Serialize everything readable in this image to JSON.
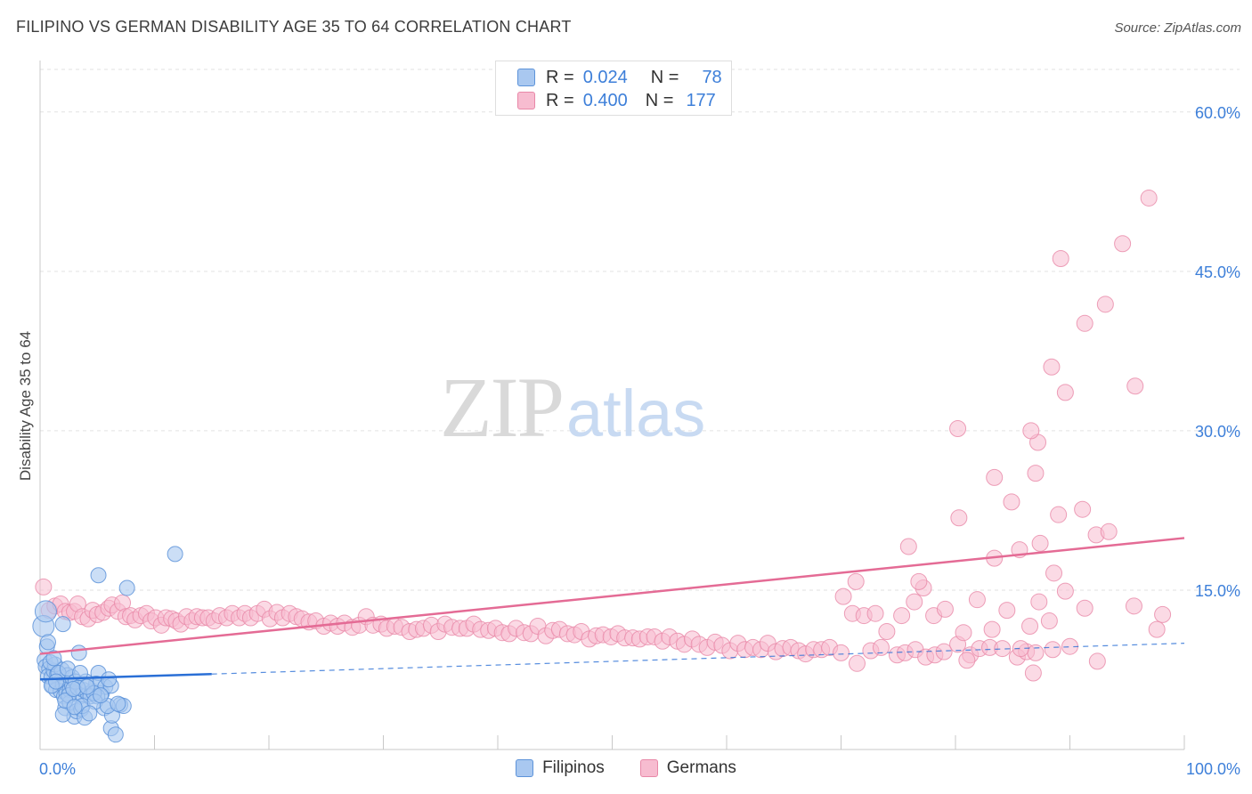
{
  "header": {
    "title": "FILIPINO VS GERMAN DISABILITY AGE 35 TO 64 CORRELATION CHART",
    "source": "Source: ZipAtlas.com"
  },
  "watermark": {
    "zip": "ZIP",
    "atlas": "atlas"
  },
  "legend_top": {
    "rows": [
      {
        "r_label": "R =",
        "r_value": "0.024",
        "n_label": "N =",
        "n_value": "78"
      },
      {
        "r_label": "R =",
        "r_value": "0.400",
        "n_label": "N =",
        "n_value": "177"
      }
    ]
  },
  "legend_bottom": {
    "items": [
      "Filipinos",
      "Germans"
    ]
  },
  "colors": {
    "filipino_fill": "#a9c8f0",
    "filipino_stroke": "#5d93d9",
    "filipino_line": "#2a6fd6",
    "german_fill": "#f7bcd0",
    "german_stroke": "#e888a8",
    "german_line": "#e46b95",
    "axis_label": "#3d7fd9",
    "grid": "#e2e2e2"
  },
  "chart_data": {
    "type": "scatter",
    "title": "FILIPINO VS GERMAN DISABILITY AGE 35 TO 64 CORRELATION CHART",
    "xlabel": "",
    "ylabel": "Disability Age 35 to 64",
    "xlim": [
      0,
      100
    ],
    "ylim": [
      0,
      64
    ],
    "x_tick_labels": [
      "0.0%",
      "100.0%"
    ],
    "y_ticks": [
      15,
      30,
      45,
      60
    ],
    "y_tick_labels": [
      "15.0%",
      "30.0%",
      "45.0%",
      "60.0%"
    ],
    "grid": true,
    "legend_position": "top-center",
    "series": [
      {
        "name": "Filipinos",
        "R": 0.024,
        "N": 78,
        "trend": {
          "x": [
            0,
            15
          ],
          "y": [
            6.6,
            7.1
          ],
          "dashed_extension": {
            "x": [
              15,
              100
            ],
            "y": [
              7.1,
              10.0
            ]
          }
        },
        "points": [
          [
            0.3,
            11.6
          ],
          [
            0.5,
            13.0
          ],
          [
            0.6,
            9.7
          ],
          [
            0.4,
            8.4
          ],
          [
            0.5,
            7.8
          ],
          [
            0.8,
            7.6
          ],
          [
            0.7,
            6.9
          ],
          [
            1.0,
            6.8
          ],
          [
            1.2,
            7.4
          ],
          [
            1.5,
            7.1
          ],
          [
            1.7,
            6.3
          ],
          [
            1.1,
            6.0
          ],
          [
            1.4,
            5.6
          ],
          [
            1.8,
            5.5
          ],
          [
            2.0,
            6.1
          ],
          [
            2.1,
            5.0
          ],
          [
            2.3,
            5.3
          ],
          [
            2.6,
            5.6
          ],
          [
            2.8,
            6.0
          ],
          [
            3.2,
            5.3
          ],
          [
            3.5,
            5.0
          ],
          [
            3.8,
            5.6
          ],
          [
            4.2,
            5.2
          ],
          [
            4.6,
            5.5
          ],
          [
            5.0,
            6.1
          ],
          [
            5.4,
            5.3
          ],
          [
            2.0,
            11.8
          ],
          [
            3.4,
            9.1
          ],
          [
            5.1,
            7.2
          ],
          [
            4.9,
            6.2
          ],
          [
            5.7,
            5.9
          ],
          [
            6.2,
            6.0
          ],
          [
            2.2,
            3.9
          ],
          [
            2.6,
            4.4
          ],
          [
            3.0,
            3.1
          ],
          [
            3.2,
            3.6
          ],
          [
            3.6,
            3.8
          ],
          [
            2.0,
            3.3
          ],
          [
            3.9,
            3.0
          ],
          [
            4.4,
            5.0
          ],
          [
            5.0,
            5.0
          ],
          [
            5.6,
            3.9
          ],
          [
            6.2,
            2.0
          ],
          [
            6.3,
            3.2
          ],
          [
            7.0,
            4.2
          ],
          [
            7.3,
            4.1
          ],
          [
            6.6,
            1.4
          ],
          [
            11.8,
            18.4
          ],
          [
            5.1,
            16.4
          ],
          [
            7.6,
            15.2
          ],
          [
            1.3,
            8.0
          ],
          [
            1.9,
            7.5
          ],
          [
            2.4,
            7.0
          ],
          [
            0.9,
            8.2
          ],
          [
            2.8,
            6.8
          ],
          [
            3.1,
            6.4
          ],
          [
            1.6,
            7.2
          ],
          [
            1.0,
            6.0
          ],
          [
            2.5,
            5.1
          ],
          [
            4.0,
            6.4
          ],
          [
            6.0,
            6.6
          ],
          [
            3.3,
            5.8
          ],
          [
            4.7,
            5.3
          ],
          [
            2.2,
            4.6
          ],
          [
            3.7,
            4.1
          ],
          [
            4.8,
            4.5
          ],
          [
            5.9,
            4.1
          ],
          [
            1.2,
            8.6
          ],
          [
            0.7,
            10.1
          ],
          [
            2.4,
            7.6
          ],
          [
            3.5,
            7.2
          ],
          [
            1.4,
            6.4
          ],
          [
            2.9,
            5.7
          ],
          [
            4.1,
            5.9
          ],
          [
            5.3,
            5.1
          ],
          [
            6.8,
            4.3
          ],
          [
            3.0,
            4.0
          ],
          [
            4.3,
            3.4
          ]
        ]
      },
      {
        "name": "Germans",
        "R": 0.4,
        "N": 177,
        "trend": {
          "x": [
            0,
            100
          ],
          "y": [
            9.0,
            19.9
          ]
        },
        "points": [
          [
            0.3,
            15.3
          ],
          [
            0.8,
            13.1
          ],
          [
            1.3,
            13.5
          ],
          [
            1.8,
            13.7
          ],
          [
            2.2,
            13.0
          ],
          [
            2.6,
            12.9
          ],
          [
            3.0,
            13.0
          ],
          [
            3.3,
            13.7
          ],
          [
            3.7,
            12.5
          ],
          [
            4.2,
            12.3
          ],
          [
            4.6,
            13.1
          ],
          [
            5.0,
            12.7
          ],
          [
            5.5,
            12.9
          ],
          [
            6.0,
            13.3
          ],
          [
            6.3,
            13.6
          ],
          [
            6.8,
            13.0
          ],
          [
            7.2,
            13.8
          ],
          [
            7.5,
            12.5
          ],
          [
            7.9,
            12.6
          ],
          [
            8.3,
            12.2
          ],
          [
            8.8,
            12.6
          ],
          [
            9.3,
            12.8
          ],
          [
            9.7,
            12.1
          ],
          [
            10.1,
            12.4
          ],
          [
            10.6,
            11.7
          ],
          [
            11.0,
            12.4
          ],
          [
            11.5,
            12.3
          ],
          [
            11.9,
            12.1
          ],
          [
            12.3,
            11.8
          ],
          [
            12.8,
            12.5
          ],
          [
            13.3,
            12.1
          ],
          [
            13.7,
            12.5
          ],
          [
            14.2,
            12.4
          ],
          [
            14.7,
            12.4
          ],
          [
            15.2,
            12.1
          ],
          [
            15.7,
            12.6
          ],
          [
            16.3,
            12.4
          ],
          [
            16.8,
            12.8
          ],
          [
            17.4,
            12.4
          ],
          [
            17.9,
            12.8
          ],
          [
            18.4,
            12.4
          ],
          [
            19.0,
            12.8
          ],
          [
            19.6,
            13.2
          ],
          [
            20.1,
            12.3
          ],
          [
            20.7,
            12.9
          ],
          [
            21.2,
            12.4
          ],
          [
            21.8,
            12.8
          ],
          [
            22.4,
            12.5
          ],
          [
            22.9,
            12.3
          ],
          [
            23.5,
            12.0
          ],
          [
            24.1,
            12.1
          ],
          [
            24.8,
            11.6
          ],
          [
            25.4,
            11.9
          ],
          [
            26.0,
            11.6
          ],
          [
            26.6,
            11.9
          ],
          [
            27.3,
            11.5
          ],
          [
            27.9,
            11.7
          ],
          [
            28.5,
            12.5
          ],
          [
            29.1,
            11.7
          ],
          [
            29.8,
            11.8
          ],
          [
            30.3,
            11.4
          ],
          [
            31.0,
            11.6
          ],
          [
            31.6,
            11.5
          ],
          [
            32.3,
            11.1
          ],
          [
            32.9,
            11.3
          ],
          [
            33.5,
            11.4
          ],
          [
            34.2,
            11.7
          ],
          [
            34.8,
            11.1
          ],
          [
            35.4,
            11.8
          ],
          [
            36.0,
            11.5
          ],
          [
            36.7,
            11.4
          ],
          [
            37.3,
            11.4
          ],
          [
            37.9,
            11.8
          ],
          [
            38.5,
            11.3
          ],
          [
            39.2,
            11.2
          ],
          [
            39.8,
            11.4
          ],
          [
            40.4,
            11.0
          ],
          [
            41.0,
            10.9
          ],
          [
            41.6,
            11.4
          ],
          [
            42.3,
            11.0
          ],
          [
            42.9,
            10.9
          ],
          [
            43.5,
            11.6
          ],
          [
            44.2,
            10.7
          ],
          [
            44.8,
            11.2
          ],
          [
            45.4,
            11.3
          ],
          [
            46.1,
            10.9
          ],
          [
            46.7,
            10.8
          ],
          [
            47.3,
            11.1
          ],
          [
            48.0,
            10.4
          ],
          [
            48.6,
            10.7
          ],
          [
            49.2,
            10.8
          ],
          [
            49.9,
            10.6
          ],
          [
            50.5,
            10.9
          ],
          [
            51.1,
            10.5
          ],
          [
            51.8,
            10.5
          ],
          [
            52.4,
            10.4
          ],
          [
            53.1,
            10.6
          ],
          [
            53.7,
            10.6
          ],
          [
            54.4,
            10.2
          ],
          [
            55.0,
            10.6
          ],
          [
            55.7,
            10.2
          ],
          [
            56.3,
            9.9
          ],
          [
            57.0,
            10.4
          ],
          [
            57.6,
            9.9
          ],
          [
            58.3,
            9.6
          ],
          [
            59.0,
            10.1
          ],
          [
            59.6,
            9.8
          ],
          [
            60.3,
            9.3
          ],
          [
            61.0,
            10.0
          ],
          [
            61.6,
            9.4
          ],
          [
            62.3,
            9.6
          ],
          [
            63.0,
            9.4
          ],
          [
            63.6,
            10.0
          ],
          [
            64.3,
            9.2
          ],
          [
            64.9,
            9.5
          ],
          [
            65.6,
            9.6
          ],
          [
            66.3,
            9.3
          ],
          [
            66.9,
            9.0
          ],
          [
            67.6,
            9.4
          ],
          [
            68.3,
            9.4
          ],
          [
            69.0,
            9.6
          ],
          [
            70.0,
            9.1
          ],
          [
            71.4,
            8.1
          ],
          [
            72.6,
            9.3
          ],
          [
            73.5,
            9.6
          ],
          [
            74.9,
            8.9
          ],
          [
            75.6,
            9.1
          ],
          [
            76.5,
            9.4
          ],
          [
            77.4,
            8.7
          ],
          [
            78.2,
            8.9
          ],
          [
            79.0,
            9.2
          ],
          [
            80.2,
            9.9
          ],
          [
            81.3,
            8.9
          ],
          [
            82.1,
            9.5
          ],
          [
            83.0,
            9.6
          ],
          [
            84.1,
            9.5
          ],
          [
            85.4,
            8.7
          ],
          [
            86.2,
            9.2
          ],
          [
            87.0,
            9.1
          ],
          [
            88.5,
            9.4
          ],
          [
            90.0,
            9.7
          ],
          [
            70.2,
            14.4
          ],
          [
            71.0,
            12.8
          ],
          [
            72.0,
            12.6
          ],
          [
            73.0,
            12.8
          ],
          [
            74.0,
            11.1
          ],
          [
            75.3,
            12.6
          ],
          [
            76.4,
            13.9
          ],
          [
            77.2,
            15.2
          ],
          [
            78.1,
            12.6
          ],
          [
            79.1,
            13.2
          ],
          [
            80.7,
            11.0
          ],
          [
            81.9,
            14.1
          ],
          [
            83.2,
            11.3
          ],
          [
            84.5,
            13.1
          ],
          [
            85.7,
            9.5
          ],
          [
            86.5,
            11.6
          ],
          [
            87.3,
            13.9
          ],
          [
            88.2,
            12.1
          ],
          [
            89.6,
            14.9
          ],
          [
            91.3,
            13.3
          ],
          [
            83.4,
            18.0
          ],
          [
            85.6,
            18.8
          ],
          [
            87.4,
            19.4
          ],
          [
            88.6,
            16.6
          ],
          [
            75.9,
            19.1
          ],
          [
            80.3,
            21.8
          ],
          [
            71.3,
            15.8
          ],
          [
            76.8,
            15.8
          ],
          [
            98.1,
            12.7
          ],
          [
            97.6,
            11.3
          ],
          [
            83.4,
            25.6
          ],
          [
            84.9,
            23.3
          ],
          [
            80.2,
            30.2
          ],
          [
            89.0,
            22.1
          ],
          [
            91.1,
            22.6
          ],
          [
            92.3,
            20.2
          ],
          [
            88.4,
            36.0
          ],
          [
            89.6,
            33.6
          ],
          [
            87.2,
            28.9
          ],
          [
            86.6,
            30.0
          ],
          [
            87.0,
            26.0
          ],
          [
            89.2,
            46.2
          ],
          [
            91.3,
            40.1
          ],
          [
            93.1,
            41.9
          ],
          [
            94.6,
            47.6
          ],
          [
            96.9,
            51.9
          ],
          [
            93.4,
            20.5
          ],
          [
            95.6,
            13.5
          ],
          [
            92.4,
            8.3
          ],
          [
            86.8,
            7.2
          ],
          [
            81.0,
            8.4
          ],
          [
            95.7,
            34.2
          ]
        ]
      }
    ]
  }
}
